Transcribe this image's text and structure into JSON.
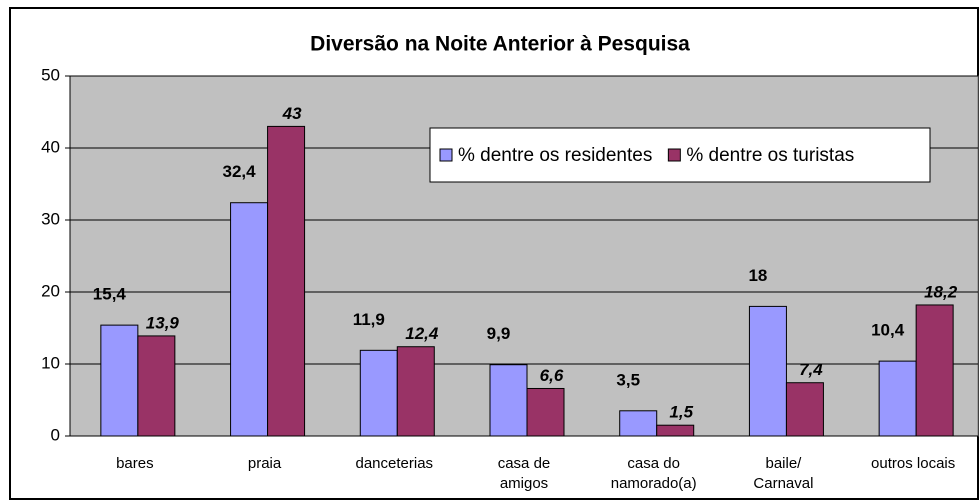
{
  "chart_data": {
    "type": "bar",
    "title": "Diversão na Noite Anterior à Pesquisa",
    "categories": [
      "bares",
      "praia",
      "danceterias",
      "casa de\namigos",
      "casa do\nnamorado(a)",
      "baile/\nCarnaval",
      "outros locais"
    ],
    "series": [
      {
        "name": "% dentre os residentes",
        "color": "#9999ff",
        "values": [
          15.4,
          32.4,
          11.9,
          9.9,
          3.5,
          18,
          10.4
        ],
        "value_labels": [
          "15,4",
          "32,4",
          "11,9",
          "9,9",
          "3,5",
          "18",
          "10,4"
        ]
      },
      {
        "name": "% dentre os turistas",
        "color": "#993366",
        "values": [
          13.9,
          43,
          12.4,
          6.6,
          1.5,
          7.4,
          18.2
        ],
        "value_labels": [
          "13,9",
          "43",
          "12,4",
          "6,6",
          "1,5",
          "7,4",
          "18,2"
        ]
      }
    ],
    "ylim": [
      0,
      50
    ],
    "yticks": [
      0,
      10,
      20,
      30,
      40,
      50
    ],
    "grid": true,
    "legend": "upper right",
    "plot_background": "#c0c0c0"
  }
}
